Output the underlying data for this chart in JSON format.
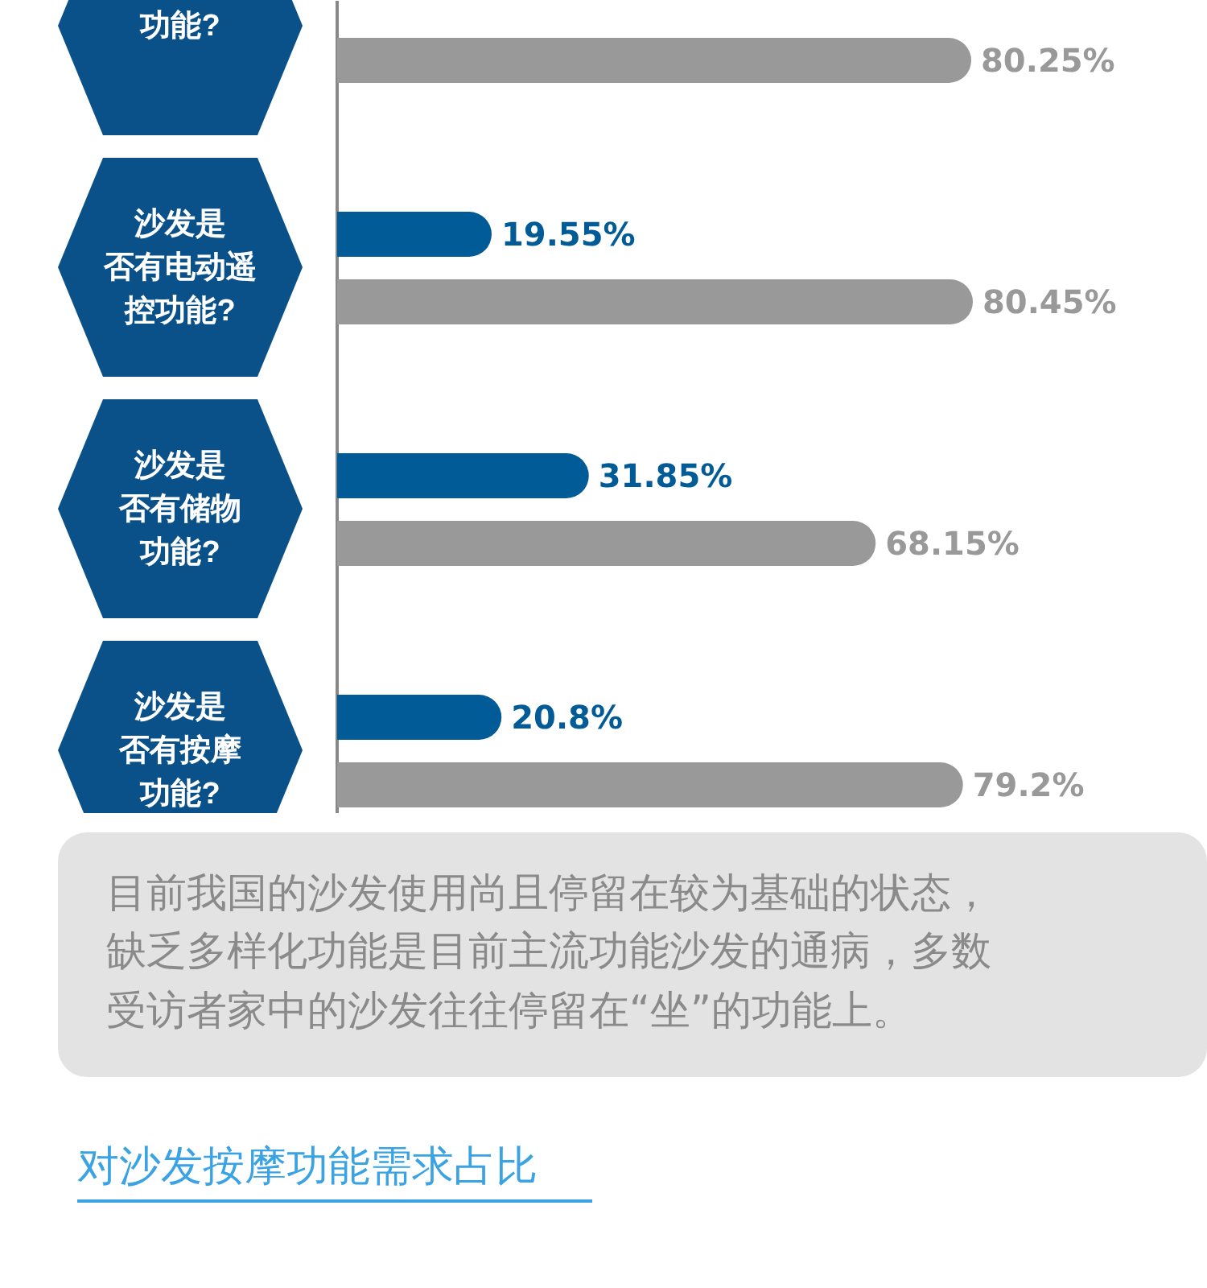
{
  "chart_data": {
    "type": "bar",
    "orientation": "horizontal",
    "categories": [
      "功能?",
      "沙发是否有电动遥控功能?",
      "沙发是否有储物功能?",
      "沙发是否有按摩功能?"
    ],
    "tick_labels": false,
    "grid": false,
    "series": [
      {
        "color": "#005b96",
        "values": [
          null,
          19.55,
          31.85,
          20.8
        ],
        "value_labels": [
          null,
          "19.55%",
          "31.85%",
          "20.8%"
        ]
      },
      {
        "color": "#999999",
        "values": [
          80.25,
          80.45,
          68.15,
          79.2
        ],
        "value_labels": [
          "80.25%",
          "80.45%",
          "68.15%",
          "79.2%"
        ]
      }
    ],
    "annotations": [
      "目前我国的沙发使用尚且停留在较为基础的状态，缺乏多样化功能是目前主流功能沙发的通病，多数受访者家中的沙发往往停留在“坐”的功能上。",
      "对沙发按摩功能需求占比"
    ]
  }
}
